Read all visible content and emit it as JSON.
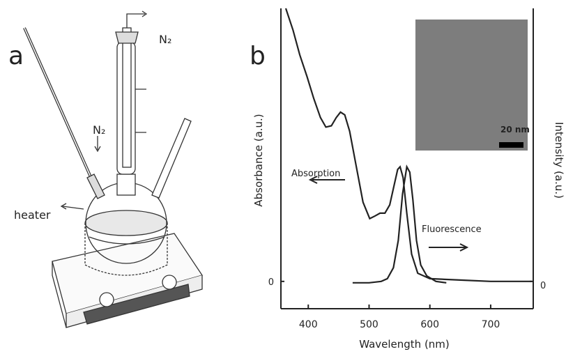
{
  "figure_labels": {
    "a": "a",
    "b": "b"
  },
  "diagram": {
    "n2_outlet": "N₂",
    "n2_inlet": "N₂",
    "heater": "heater"
  },
  "chart_data": {
    "type": "line",
    "xlabel": "Wavelength (nm)",
    "ylabel": "Absorbance (a.u.)",
    "y2label": "Intensity (a.u.)",
    "inset_scale_label": "20 nm",
    "xlim": [
      355,
      770
    ],
    "xticks": [
      400,
      500,
      600,
      700
    ],
    "ylim": [
      -0.1,
      1.0
    ],
    "yticks": [
      0
    ],
    "y2lim": [
      -0.1,
      1.0
    ],
    "y2ticks": [
      0
    ],
    "series": [
      {
        "name": "Absorption",
        "color": "#222222",
        "x": [
          363,
          375,
          386,
          398,
          409,
          420,
          429,
          438,
          446,
          453,
          460,
          468,
          479,
          490,
          501,
          510,
          518,
          526,
          534,
          542,
          547,
          551,
          556,
          562,
          570,
          580,
          600,
          650,
          700,
          768
        ],
        "values": [
          1.0,
          0.92,
          0.83,
          0.75,
          0.67,
          0.6,
          0.565,
          0.57,
          0.6,
          0.62,
          0.61,
          0.55,
          0.42,
          0.29,
          0.23,
          0.24,
          0.25,
          0.25,
          0.28,
          0.36,
          0.41,
          0.42,
          0.38,
          0.25,
          0.1,
          0.03,
          0.01,
          0.005,
          0.0,
          0.0
        ]
      },
      {
        "name": "Fluorescence",
        "color": "#222222",
        "axis": "y2",
        "x": [
          473,
          500,
          520,
          530,
          540,
          548,
          555,
          562,
          567,
          572,
          578,
          585,
          595,
          610,
          627
        ],
        "values": [
          -0.005,
          -0.005,
          0,
          0.01,
          0.05,
          0.15,
          0.32,
          0.42,
          0.4,
          0.3,
          0.15,
          0.06,
          0.02,
          0.0,
          -0.005
        ]
      }
    ]
  }
}
